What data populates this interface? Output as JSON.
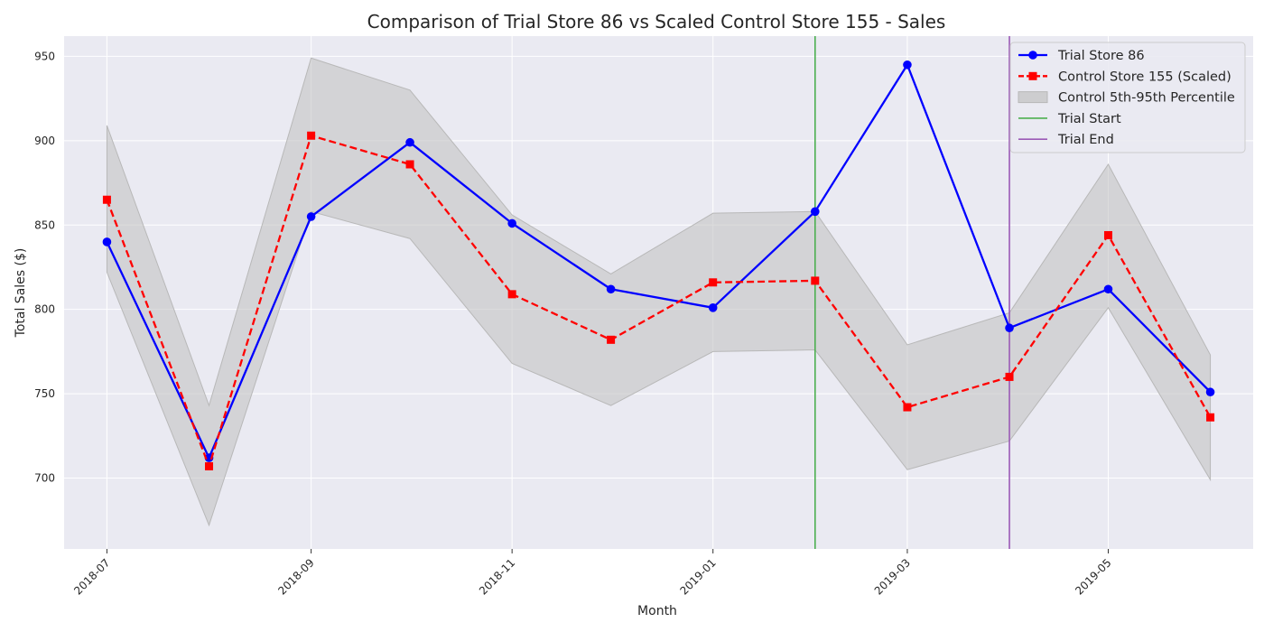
{
  "chart_data": {
    "type": "line",
    "title": "Comparison of Trial Store 86 vs Scaled Control Store 155 - Sales",
    "xlabel": "Month",
    "ylabel": "Total Sales ($)",
    "ylim": [
      658,
      962
    ],
    "xlim": [
      "2018-06-18",
      "2019-06-14"
    ],
    "grid": true,
    "legend_position": "top-right",
    "x": [
      "2018-07-01",
      "2018-08-01",
      "2018-09-01",
      "2018-10-01",
      "2018-11-01",
      "2018-12-01",
      "2019-01-01",
      "2019-02-01",
      "2019-03-01",
      "2019-04-01",
      "2019-05-01",
      "2019-06-01"
    ],
    "x_tick_labels": [
      "2018-07",
      "2018-09",
      "2018-11",
      "2019-01",
      "2019-03",
      "2019-05"
    ],
    "x_tick_dates": [
      "2018-07-01",
      "2018-09-01",
      "2018-11-01",
      "2019-01-01",
      "2019-03-01",
      "2019-05-01"
    ],
    "y_ticks": [
      700,
      750,
      800,
      850,
      900,
      950
    ],
    "series": [
      {
        "name": "Trial Store 86",
        "color": "#0000ff",
        "style": "solid",
        "marker": "circle",
        "values": [
          840,
          712,
          855,
          899,
          851,
          812,
          801,
          858,
          945,
          789,
          812,
          751
        ]
      },
      {
        "name": "Control Store 155 (Scaled)",
        "color": "#ff0000",
        "style": "dashed",
        "marker": "square",
        "values": [
          865,
          707,
          903,
          886,
          809,
          782,
          816,
          817,
          742,
          760,
          844,
          736
        ]
      }
    ],
    "band": {
      "name": "Control 5th-95th Percentile",
      "color": "#c0c0c0",
      "lower": [
        822,
        672,
        858,
        842,
        768,
        743,
        775,
        776,
        705,
        722,
        801,
        699
      ],
      "upper": [
        909,
        743,
        949,
        930,
        856,
        821,
        857,
        858,
        779,
        798,
        886,
        773
      ]
    },
    "vlines": [
      {
        "name": "Trial Start",
        "x": "2019-02-01",
        "color": "#4caf50"
      },
      {
        "name": "Trial End",
        "x": "2019-04-01",
        "color": "#9b59b6"
      }
    ]
  }
}
